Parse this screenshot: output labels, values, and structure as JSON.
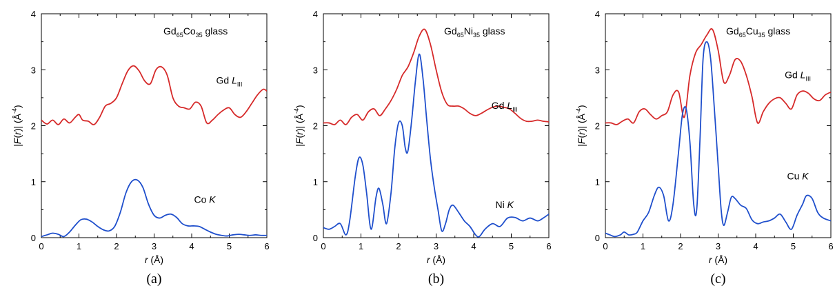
{
  "chart_data": [
    {
      "type": "line",
      "panel_label": "(a)",
      "title_parts": [
        "Gd",
        "65",
        "Co",
        "35",
        " glass"
      ],
      "xlabel_parts": [
        "r",
        " (Å)"
      ],
      "ylabel_parts": [
        "|",
        "F",
        "(",
        "r",
        ")|  (Å",
        "-4",
        ")"
      ],
      "xlim": [
        0,
        6
      ],
      "ylim": [
        0,
        4
      ],
      "xticks": [
        "0",
        "1",
        "2",
        "3",
        "4",
        "5",
        "6"
      ],
      "yticks": [
        "0",
        "1",
        "2",
        "3",
        "4"
      ],
      "series": [
        {
          "label_parts": [
            "Gd ",
            "L",
            "III"
          ],
          "color": "#d62a2a",
          "x": [
            0,
            0.15,
            0.3,
            0.45,
            0.6,
            0.75,
            0.9,
            1.0,
            1.1,
            1.25,
            1.4,
            1.55,
            1.7,
            1.85,
            2.0,
            2.15,
            2.3,
            2.45,
            2.6,
            2.75,
            2.9,
            3.05,
            3.2,
            3.35,
            3.5,
            3.65,
            3.8,
            3.95,
            4.1,
            4.25,
            4.4,
            4.55,
            4.7,
            4.85,
            5.0,
            5.15,
            5.3,
            5.45,
            5.6,
            5.75,
            5.9,
            6.0
          ],
          "y": [
            2.1,
            2.03,
            2.1,
            2.02,
            2.12,
            2.05,
            2.15,
            2.2,
            2.1,
            2.08,
            2.02,
            2.15,
            2.35,
            2.4,
            2.5,
            2.75,
            2.98,
            3.07,
            2.98,
            2.8,
            2.75,
            3.0,
            3.05,
            2.9,
            2.5,
            2.35,
            2.32,
            2.3,
            2.42,
            2.35,
            2.05,
            2.1,
            2.2,
            2.28,
            2.32,
            2.2,
            2.15,
            2.25,
            2.4,
            2.55,
            2.65,
            2.62
          ]
        },
        {
          "label_parts": [
            "Co ",
            "K",
            ""
          ],
          "color": "#1f4fcc",
          "x": [
            0,
            0.15,
            0.3,
            0.45,
            0.6,
            0.75,
            0.9,
            1.05,
            1.2,
            1.35,
            1.5,
            1.65,
            1.8,
            1.95,
            2.1,
            2.25,
            2.4,
            2.55,
            2.7,
            2.85,
            3.0,
            3.15,
            3.3,
            3.45,
            3.6,
            3.75,
            3.9,
            4.05,
            4.2,
            4.35,
            4.5,
            4.65,
            4.8,
            4.95,
            5.1,
            5.25,
            5.4,
            5.55,
            5.7,
            5.85,
            6.0
          ],
          "y": [
            0.02,
            0.05,
            0.08,
            0.06,
            0.02,
            0.1,
            0.22,
            0.32,
            0.33,
            0.28,
            0.2,
            0.14,
            0.12,
            0.2,
            0.45,
            0.8,
            1.0,
            1.03,
            0.9,
            0.6,
            0.4,
            0.35,
            0.4,
            0.42,
            0.36,
            0.25,
            0.21,
            0.21,
            0.2,
            0.15,
            0.1,
            0.06,
            0.04,
            0.03,
            0.05,
            0.06,
            0.05,
            0.04,
            0.05,
            0.04,
            0.04
          ]
        }
      ]
    },
    {
      "type": "line",
      "panel_label": "(b)",
      "title_parts": [
        "Gd",
        "65",
        "Ni",
        "35",
        " glass"
      ],
      "xlabel_parts": [
        "r",
        " (Å)"
      ],
      "ylabel_parts": [
        "|",
        "F",
        "(",
        "r",
        ")|  (Å",
        "-4",
        ")"
      ],
      "xlim": [
        0,
        6
      ],
      "ylim": [
        0,
        4
      ],
      "xticks": [
        "0",
        "1",
        "2",
        "3",
        "4",
        "5",
        "6"
      ],
      "yticks": [
        "0",
        "1",
        "2",
        "3",
        "4"
      ],
      "series": [
        {
          "label_parts": [
            "Gd ",
            "L",
            "III"
          ],
          "color": "#d62a2a",
          "x": [
            0,
            0.15,
            0.3,
            0.45,
            0.6,
            0.75,
            0.9,
            1.05,
            1.2,
            1.35,
            1.5,
            1.65,
            1.8,
            1.95,
            2.1,
            2.25,
            2.4,
            2.55,
            2.7,
            2.85,
            3.0,
            3.15,
            3.3,
            3.45,
            3.6,
            3.75,
            3.9,
            4.05,
            4.2,
            4.35,
            4.5,
            4.65,
            4.8,
            4.95,
            5.1,
            5.25,
            5.4,
            5.55,
            5.7,
            5.85,
            6.0
          ],
          "y": [
            2.05,
            2.05,
            2.02,
            2.1,
            2.02,
            2.15,
            2.2,
            2.1,
            2.25,
            2.3,
            2.18,
            2.3,
            2.45,
            2.65,
            2.9,
            3.05,
            3.3,
            3.6,
            3.72,
            3.45,
            3.0,
            2.6,
            2.38,
            2.35,
            2.35,
            2.3,
            2.22,
            2.18,
            2.22,
            2.28,
            2.33,
            2.35,
            2.33,
            2.3,
            2.22,
            2.13,
            2.08,
            2.08,
            2.1,
            2.08,
            2.07
          ]
        },
        {
          "label_parts": [
            "Ni ",
            "K",
            ""
          ],
          "color": "#1f4fcc",
          "x": [
            0,
            0.15,
            0.3,
            0.45,
            0.6,
            0.7,
            0.85,
            0.95,
            1.05,
            1.15,
            1.27,
            1.4,
            1.48,
            1.58,
            1.68,
            1.8,
            1.9,
            2.0,
            2.1,
            2.18,
            2.25,
            2.35,
            2.45,
            2.55,
            2.65,
            2.75,
            2.85,
            2.95,
            3.05,
            3.15,
            3.25,
            3.35,
            3.45,
            3.6,
            3.75,
            3.9,
            4.05,
            4.15,
            4.3,
            4.5,
            4.7,
            4.9,
            5.1,
            5.3,
            5.5,
            5.7,
            5.85,
            6.0
          ],
          "y": [
            0.18,
            0.15,
            0.2,
            0.25,
            0.05,
            0.3,
            1.1,
            1.43,
            1.3,
            0.8,
            0.15,
            0.72,
            0.88,
            0.6,
            0.25,
            0.8,
            1.6,
            2.05,
            2.0,
            1.6,
            1.55,
            2.1,
            2.8,
            3.28,
            2.85,
            2.1,
            1.4,
            0.9,
            0.5,
            0.12,
            0.25,
            0.5,
            0.58,
            0.45,
            0.3,
            0.2,
            0.05,
            0.02,
            0.15,
            0.25,
            0.2,
            0.35,
            0.36,
            0.3,
            0.35,
            0.3,
            0.35,
            0.42
          ]
        }
      ]
    },
    {
      "type": "line",
      "panel_label": "(c)",
      "title_parts": [
        "Gd",
        "65",
        "Cu",
        "35",
        " glass"
      ],
      "xlabel_parts": [
        "r",
        " (Å)"
      ],
      "ylabel_parts": [
        "|",
        "F",
        "(",
        "r",
        ")|  (Å",
        "-4",
        ")"
      ],
      "xlim": [
        0,
        6
      ],
      "ylim": [
        0,
        4
      ],
      "xticks": [
        "0",
        "1",
        "2",
        "3",
        "4",
        "5",
        "6"
      ],
      "yticks": [
        "0",
        "1",
        "2",
        "3",
        "4"
      ],
      "series": [
        {
          "label_parts": [
            "Gd ",
            "L",
            "III"
          ],
          "color": "#d62a2a",
          "x": [
            0,
            0.15,
            0.3,
            0.45,
            0.6,
            0.75,
            0.9,
            1.05,
            1.2,
            1.35,
            1.5,
            1.65,
            1.8,
            1.95,
            2.1,
            2.25,
            2.4,
            2.55,
            2.7,
            2.85,
            3.0,
            3.15,
            3.3,
            3.45,
            3.6,
            3.75,
            3.9,
            4.05,
            4.2,
            4.35,
            4.5,
            4.65,
            4.8,
            4.95,
            5.1,
            5.25,
            5.4,
            5.55,
            5.7,
            5.85,
            6.0
          ],
          "y": [
            2.05,
            2.05,
            2.02,
            2.08,
            2.12,
            2.05,
            2.25,
            2.3,
            2.2,
            2.12,
            2.18,
            2.25,
            2.55,
            2.6,
            2.15,
            2.9,
            3.3,
            3.45,
            3.62,
            3.72,
            3.35,
            2.78,
            2.9,
            3.18,
            3.15,
            2.9,
            2.52,
            2.05,
            2.25,
            2.4,
            2.48,
            2.5,
            2.4,
            2.3,
            2.55,
            2.62,
            2.58,
            2.48,
            2.45,
            2.55,
            2.6
          ]
        },
        {
          "label_parts": [
            "Cu ",
            "K",
            ""
          ],
          "color": "#1f4fcc",
          "x": [
            0,
            0.12,
            0.25,
            0.4,
            0.5,
            0.62,
            0.75,
            0.85,
            1.0,
            1.15,
            1.3,
            1.42,
            1.55,
            1.68,
            1.8,
            1.95,
            2.05,
            2.15,
            2.25,
            2.35,
            2.43,
            2.52,
            2.6,
            2.7,
            2.8,
            2.9,
            3.0,
            3.08,
            3.15,
            3.25,
            3.35,
            3.45,
            3.6,
            3.75,
            3.9,
            4.05,
            4.2,
            4.35,
            4.5,
            4.65,
            4.8,
            4.95,
            5.1,
            5.25,
            5.35,
            5.5,
            5.65,
            5.8,
            6.0
          ],
          "y": [
            0.08,
            0.05,
            0.02,
            0.05,
            0.1,
            0.05,
            0.06,
            0.1,
            0.3,
            0.45,
            0.75,
            0.9,
            0.75,
            0.3,
            0.6,
            1.55,
            2.2,
            2.3,
            1.7,
            0.6,
            0.5,
            1.8,
            3.2,
            3.5,
            3.2,
            2.3,
            1.3,
            0.5,
            0.22,
            0.45,
            0.72,
            0.7,
            0.58,
            0.52,
            0.32,
            0.25,
            0.28,
            0.3,
            0.35,
            0.42,
            0.28,
            0.15,
            0.4,
            0.6,
            0.75,
            0.7,
            0.45,
            0.35,
            0.3
          ]
        }
      ]
    }
  ]
}
